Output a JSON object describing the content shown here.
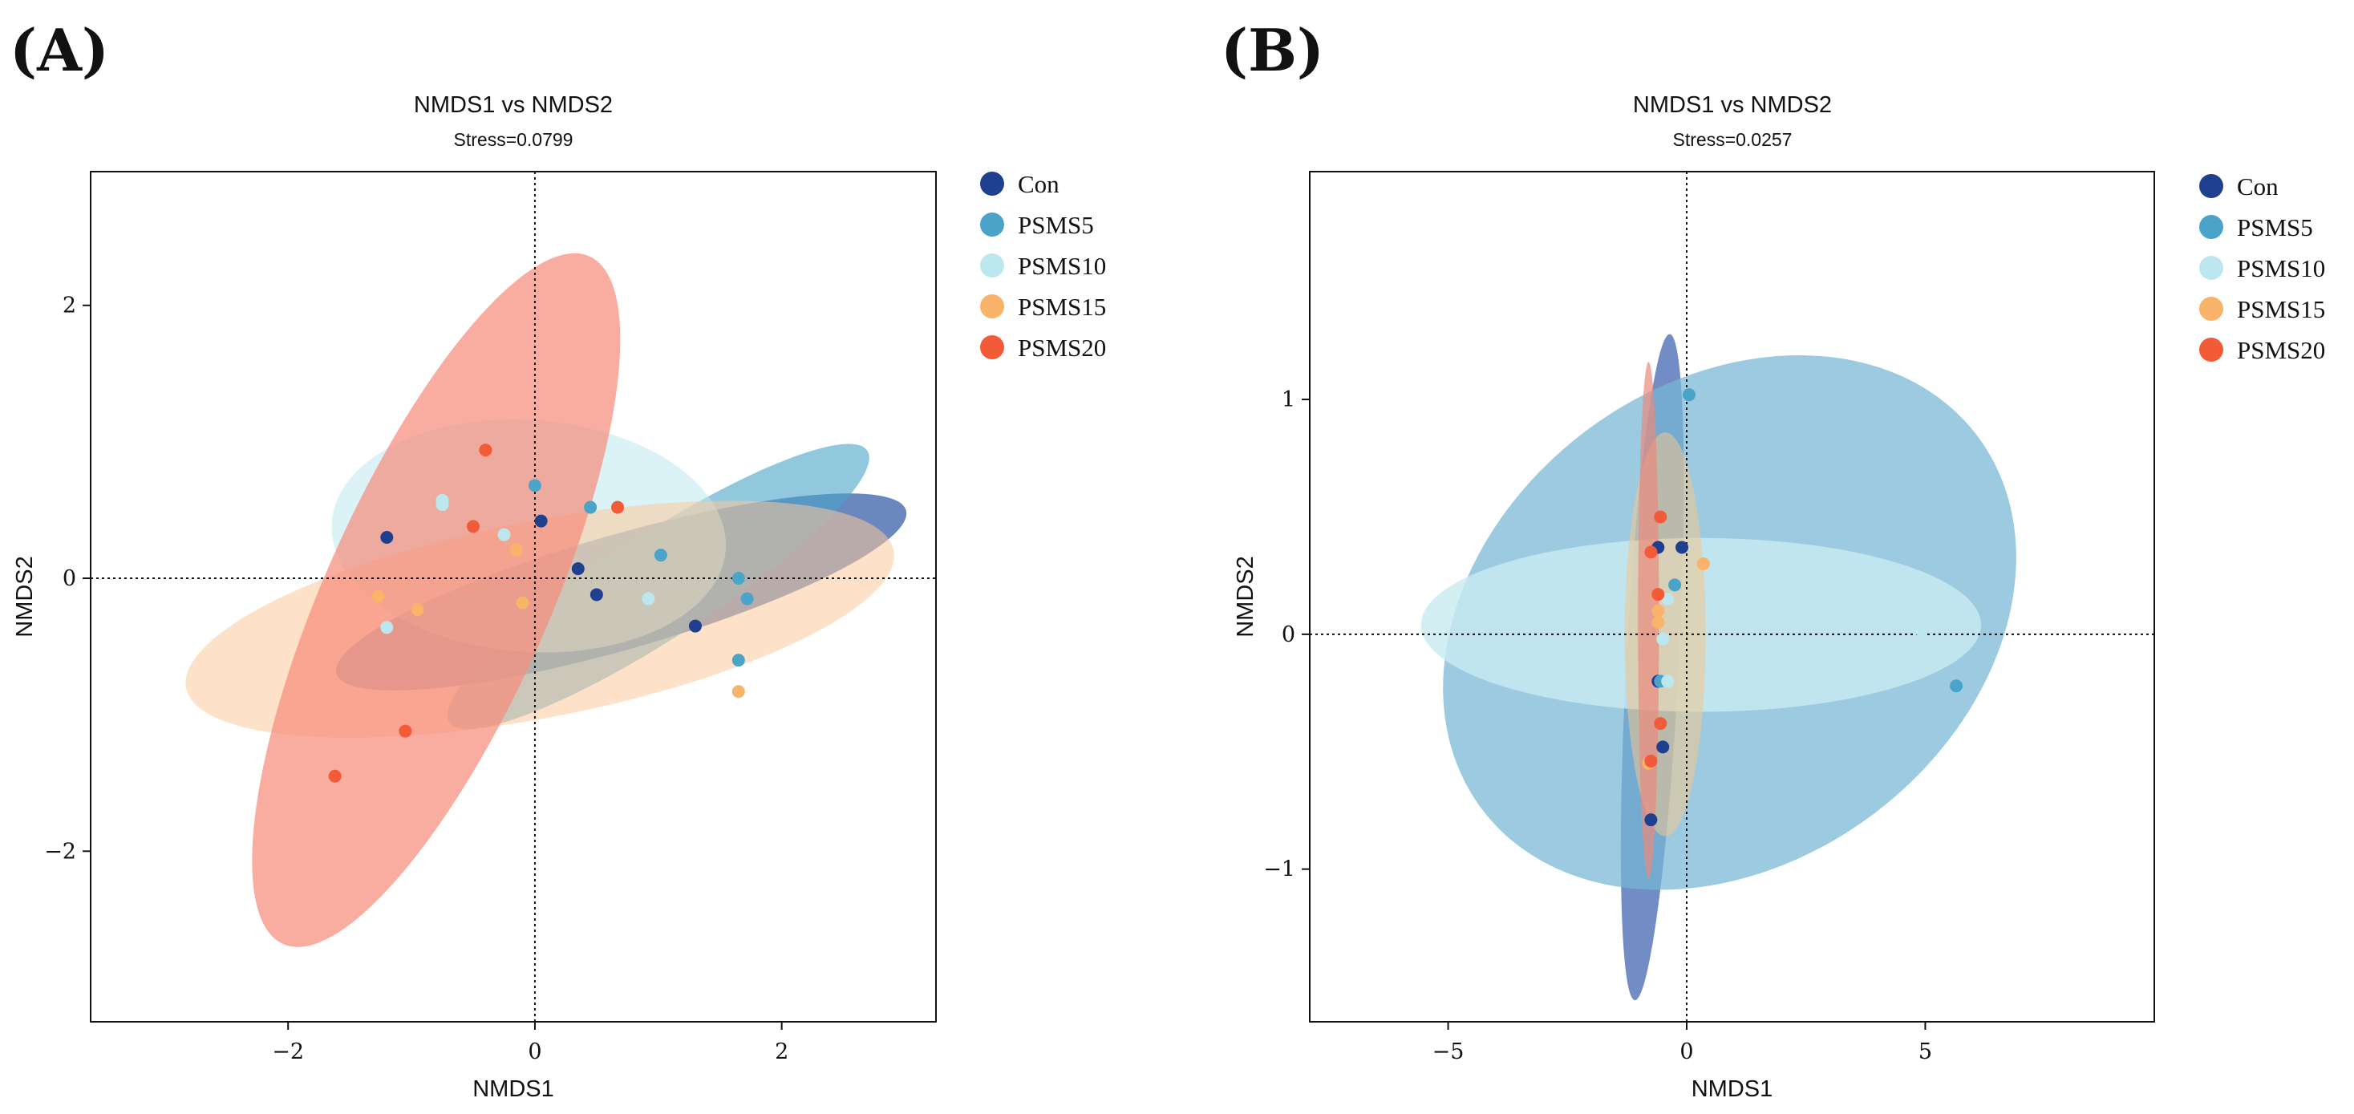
{
  "figure": {
    "panel_labels": [
      "(A)",
      "(B)"
    ]
  },
  "chart_data": [
    {
      "type": "scatter",
      "panel": "(A)",
      "title": "NMDS1 vs NMDS2",
      "subtitle": "Stress=0.0799",
      "xlabel": "NMDS1",
      "ylabel": "NMDS2",
      "xlim": [
        -3.6,
        3.25
      ],
      "ylim": [
        -3.25,
        2.98
      ],
      "xticks": [
        -2,
        0,
        2
      ],
      "yticks": [
        -2,
        0,
        2
      ],
      "xtick_labels": [
        "−2",
        "0",
        "2"
      ],
      "ytick_labels": [
        "−2",
        "0",
        "2"
      ],
      "reference_lines": {
        "x": 0,
        "y": 0,
        "style": "dotted"
      },
      "legend": [
        "Con",
        "PSMS5",
        "PSMS10",
        "PSMS15",
        "PSMS20"
      ],
      "series": [
        {
          "name": "Con",
          "color": "#1f3f8f",
          "ellipse_color": "#2c55a3",
          "ellipse_opacity": 0.7,
          "points": [
            [
              -1.2,
              0.3
            ],
            [
              0.05,
              0.42
            ],
            [
              0.35,
              0.07
            ],
            [
              0.5,
              -0.12
            ],
            [
              1.3,
              -0.35
            ]
          ],
          "ellipse": {
            "cx": 0.7,
            "cy": -0.1,
            "rx": 2.4,
            "ry": 0.42,
            "angle": -16
          }
        },
        {
          "name": "PSMS5",
          "color": "#4aa3c8",
          "ellipse_color": "#4aa3c8",
          "ellipse_opacity": 0.6,
          "points": [
            [
              0.0,
              0.68
            ],
            [
              0.45,
              0.52
            ],
            [
              1.02,
              0.17
            ],
            [
              1.65,
              0.0
            ],
            [
              1.72,
              -0.15
            ],
            [
              1.65,
              -0.6
            ]
          ],
          "ellipse": {
            "cx": 1.0,
            "cy": -0.06,
            "rx": 2.02,
            "ry": 0.38,
            "angle": -33
          }
        },
        {
          "name": "PSMS10",
          "color": "#bde7ef",
          "ellipse_color": "#bde7ef",
          "ellipse_opacity": 0.55,
          "points": [
            [
              -0.75,
              0.57
            ],
            [
              -0.75,
              0.54
            ],
            [
              -0.25,
              0.32
            ],
            [
              0.92,
              -0.15
            ],
            [
              -1.2,
              -0.36
            ]
          ],
          "ellipse": {
            "cx": -0.05,
            "cy": 0.31,
            "rx": 1.6,
            "ry": 0.85,
            "angle": 4
          }
        },
        {
          "name": "PSMS15",
          "color": "#f9b36a",
          "ellipse_color": "#fbc89a",
          "ellipse_opacity": 0.55,
          "points": [
            [
              -0.15,
              0.21
            ],
            [
              -1.27,
              -0.13
            ],
            [
              -0.95,
              -0.23
            ],
            [
              -0.1,
              -0.18
            ],
            [
              1.65,
              -0.83
            ]
          ],
          "ellipse": {
            "cx": 0.04,
            "cy": -0.3,
            "rx": 2.92,
            "ry": 0.72,
            "angle": -11
          }
        },
        {
          "name": "PSMS20",
          "color": "#f25a38",
          "ellipse_color": "#f78e7d",
          "ellipse_opacity": 0.72,
          "points": [
            [
              -0.4,
              0.94
            ],
            [
              0.67,
              0.52
            ],
            [
              -0.5,
              0.38
            ],
            [
              -1.05,
              -1.12
            ],
            [
              -1.62,
              -1.45
            ]
          ],
          "ellipse": {
            "cx": -0.8,
            "cy": -0.16,
            "rx": 3.05,
            "ry": 0.82,
            "angle": -66
          }
        }
      ]
    },
    {
      "type": "scatter",
      "panel": "(B)",
      "title": "NMDS1 vs NMDS2",
      "subtitle": "Stress=0.0257",
      "xlabel": "NMDS1",
      "ylabel": "NMDS2",
      "xlim": [
        -7.9,
        9.8
      ],
      "ylim": [
        -1.65,
        1.97
      ],
      "xticks": [
        -5,
        0,
        5
      ],
      "yticks": [
        -1,
        0,
        1
      ],
      "xtick_labels": [
        "−5",
        "0",
        "5"
      ],
      "ytick_labels": [
        "−1",
        "0",
        "1"
      ],
      "reference_lines": {
        "x": 0,
        "y": 0,
        "style": "dotted"
      },
      "legend": [
        "Con",
        "PSMS5",
        "PSMS10",
        "PSMS15",
        "PSMS20"
      ],
      "series": [
        {
          "name": "Con",
          "color": "#1f3f8f",
          "ellipse_color": "#4f6fb7",
          "ellipse_opacity": 0.8,
          "points": [
            [
              -0.1,
              0.37
            ],
            [
              -0.6,
              0.37
            ],
            [
              -0.6,
              -0.2
            ],
            [
              -0.5,
              -0.48
            ],
            [
              -0.75,
              -0.79
            ]
          ],
          "ellipse": {
            "cx": -0.72,
            "cy": -0.14,
            "rx": 0.55,
            "ry": 1.42,
            "angle": 3
          }
        },
        {
          "name": "PSMS5",
          "color": "#4aa3c8",
          "ellipse_color": "#76b6d6",
          "ellipse_opacity": 0.72,
          "points": [
            [
              0.05,
              1.02
            ],
            [
              -0.25,
              0.21
            ],
            [
              5.65,
              -0.22
            ],
            [
              -0.55,
              -0.2
            ]
          ],
          "ellipse": {
            "cx": 0.9,
            "cy": 0.05,
            "rx": 6.5,
            "ry": 1.02,
            "angle": -37
          }
        },
        {
          "name": "PSMS10",
          "color": "#bde7ef",
          "ellipse_color": "#c9ebf1",
          "ellipse_opacity": 0.8,
          "points": [
            [
              -0.4,
              0.15
            ],
            [
              -0.5,
              -0.02
            ],
            [
              -0.4,
              -0.2
            ],
            [
              4.9,
              0.02
            ]
          ],
          "ellipse": {
            "cx": 0.3,
            "cy": 0.04,
            "rx": 5.87,
            "ry": 0.37,
            "angle": 0
          }
        },
        {
          "name": "PSMS15",
          "color": "#f9b36a",
          "ellipse_color": "#f2c68e",
          "ellipse_opacity": 0.55,
          "points": [
            [
              0.35,
              0.3
            ],
            [
              -0.6,
              0.1
            ],
            [
              -0.6,
              0.05
            ],
            [
              -0.8,
              -0.55
            ]
          ],
          "ellipse": {
            "cx": -0.45,
            "cy": 0.0,
            "rx": 0.85,
            "ry": 0.86,
            "angle": 0
          }
        },
        {
          "name": "PSMS20",
          "color": "#f25a38",
          "ellipse_color": "#e98a7d",
          "ellipse_opacity": 0.7,
          "points": [
            [
              -0.55,
              0.5
            ],
            [
              -0.75,
              0.35
            ],
            [
              -0.6,
              0.17
            ],
            [
              -0.55,
              -0.38
            ],
            [
              -0.75,
              -0.54
            ]
          ],
          "ellipse": {
            "cx": -0.8,
            "cy": 0.06,
            "rx": 0.22,
            "ry": 1.1,
            "angle": 0
          }
        }
      ]
    }
  ]
}
